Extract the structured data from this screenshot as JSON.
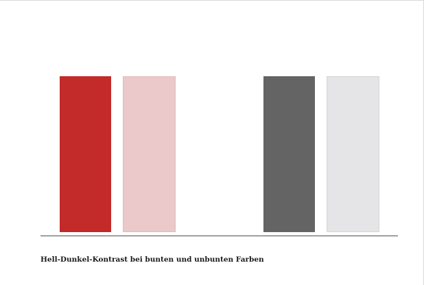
{
  "swatches": [
    {
      "name": "saturated-red",
      "color": "#c32a2a"
    },
    {
      "name": "light-red",
      "color": "#ebc8c9"
    },
    {
      "name": "dark-gray",
      "color": "#646464"
    },
    {
      "name": "light-gray",
      "color": "#e5e5e7"
    }
  ],
  "caption": "Hell-Dunkel-Kontrast bei bunten und unbunten Farben"
}
